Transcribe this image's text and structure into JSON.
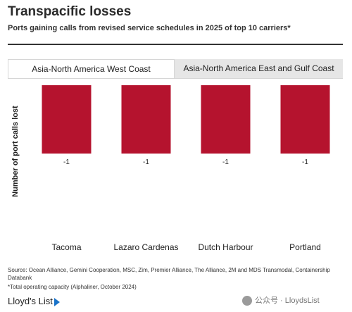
{
  "header": {
    "title": "Transpacific losses",
    "subtitle": "Ports gaining calls from revised service schedules in 2025 of top 10 carriers*"
  },
  "tabs": [
    {
      "label": "Asia-North America West Coast",
      "active": true
    },
    {
      "label": "Asia-North America East and Gulf Coast",
      "active": false
    }
  ],
  "chart_data": {
    "type": "bar",
    "categories": [
      "Tacoma",
      "Lazaro Cardenas",
      "Dutch Harbour",
      "Portland"
    ],
    "values": [
      -1,
      -1,
      -1,
      -1
    ],
    "data_labels": [
      "-1",
      "-1",
      "-1",
      "-1"
    ],
    "ylabel": "Number of port calls lost",
    "ylim": [
      -1,
      0
    ],
    "bar_color": "#b5132e",
    "grid": false
  },
  "footer": {
    "source": "Source: Ocean Alliance, Gemini Cooperation, MSC, Zim, Premier Alliance, The Alliance, 2M and MDS Transmodal, Containership Databank",
    "note": "*Total operating capacity (Alphaliner, October 2024)",
    "logo": "Lloyd's List",
    "watermark": "公众号 · LloydsList"
  },
  "colors": {
    "accent": "#b5132e",
    "logo_mark": "#1a73c9",
    "tab_inactive_bg": "#e6e6e6"
  }
}
